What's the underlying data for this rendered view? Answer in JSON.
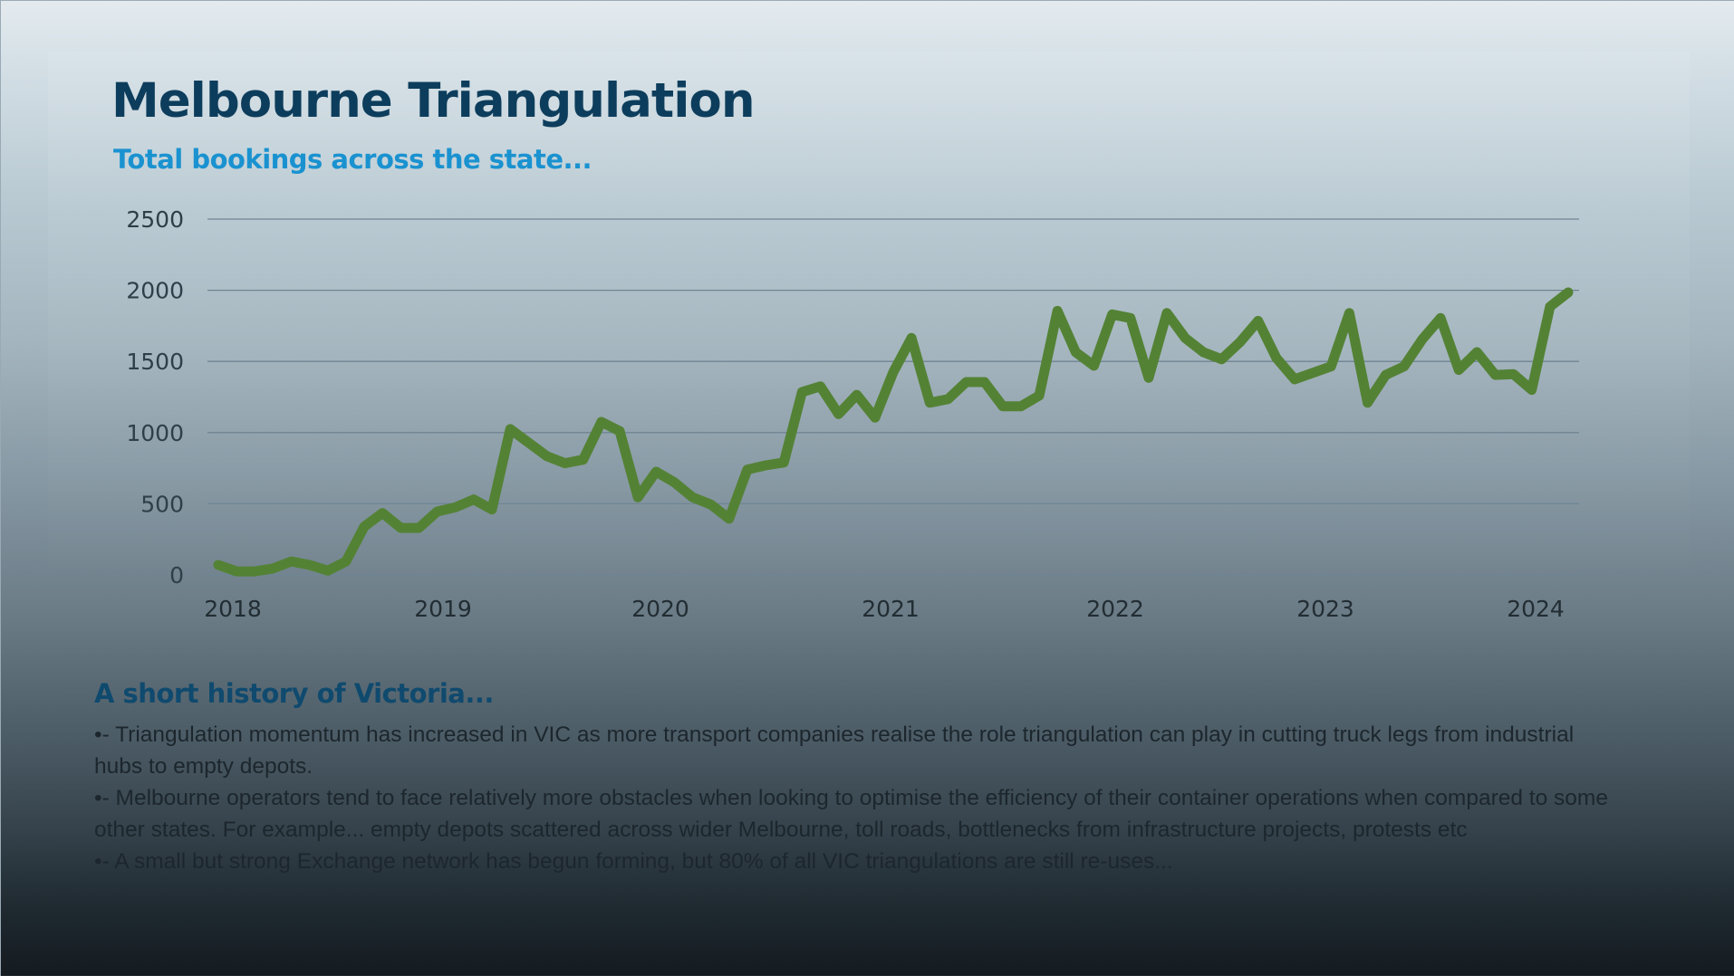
{
  "slide": {
    "title": "Melbourne Triangulation",
    "subtitle": "Total bookings across the state...",
    "section_title": "A short history of Victoria...",
    "bullets": [
      "•- Triangulation momentum has increased in VIC as more transport companies realise the role triangulation can play in cutting truck legs from industrial hubs to empty depots.",
      "•- Melbourne operators tend to face relatively more obstacles when looking to optimise the efficiency of their container operations when compared to some other states. For example... empty depots scattered across wider Melbourne, toll roads, bottlenecks from infrastructure projects, protests etc",
      "•- A small but strong Exchange network has begun forming, but 80% of all VIC triangulations are still re-uses..."
    ]
  },
  "colors": {
    "line": "#548235",
    "title": "#0d3d5c",
    "subtitle": "#1a92d0",
    "gridline": "#6f8592"
  },
  "chart_data": {
    "type": "line",
    "title": "Total bookings across the state...",
    "xlabel": "",
    "ylabel": "",
    "ylim": [
      0,
      2500
    ],
    "yticks": [
      0,
      500,
      1000,
      1500,
      2000,
      2500
    ],
    "ytick_labels": [
      "0",
      "500",
      "1000",
      "1500",
      "2000",
      "2500"
    ],
    "xtick_labels": [
      "2018",
      "2019",
      "2020",
      "2021",
      "2022",
      "2023",
      "2024"
    ],
    "x_start": "2018-01",
    "x_interval": "monthly",
    "grid": true,
    "legend": "none",
    "series": [
      {
        "name": "Total bookings",
        "values": [
          70,
          25,
          25,
          45,
          95,
          70,
          30,
          95,
          340,
          435,
          330,
          330,
          445,
          475,
          530,
          460,
          1025,
          930,
          835,
          785,
          810,
          1075,
          1010,
          545,
          725,
          650,
          545,
          495,
          395,
          740,
          770,
          790,
          1285,
          1325,
          1130,
          1265,
          1105,
          1425,
          1665,
          1210,
          1235,
          1355,
          1355,
          1185,
          1185,
          1260,
          1855,
          1565,
          1470,
          1830,
          1805,
          1385,
          1840,
          1665,
          1565,
          1515,
          1635,
          1785,
          1525,
          1375,
          1420,
          1465,
          1840,
          1210,
          1405,
          1465,
          1655,
          1805,
          1440,
          1565,
          1405,
          1410,
          1300,
          1885,
          1985
        ]
      }
    ]
  }
}
